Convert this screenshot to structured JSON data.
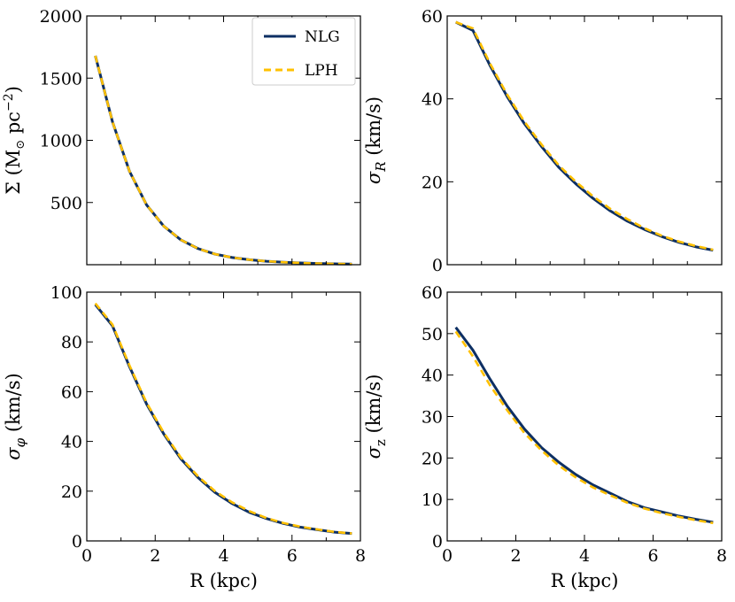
{
  "colors": {
    "nlg": "#0d2f63",
    "lph": "#ffc000"
  },
  "legend": [
    {
      "key": "nlg",
      "label": "NLG",
      "style": "solid"
    },
    {
      "key": "lph",
      "label": "LPH",
      "style": "dashed"
    }
  ],
  "chart_data": [
    {
      "type": "line",
      "id": "sigma",
      "xlabel": "",
      "ylabel": "Σ (M⊙ pc⁻²)",
      "xlim": [
        0,
        8
      ],
      "ylim": [
        0,
        2000
      ],
      "xticks": [],
      "yticks": [
        500,
        1000,
        1500,
        2000
      ],
      "show_xtick_labels": false,
      "x": [
        0.25,
        0.75,
        1.25,
        1.75,
        2.25,
        2.75,
        3.25,
        3.75,
        4.25,
        4.75,
        5.25,
        5.75,
        6.25,
        6.75,
        7.25,
        7.75
      ],
      "series": [
        {
          "name": "NLG",
          "values": [
            1680,
            1150,
            750,
            480,
            310,
            200,
            130,
            85,
            58,
            40,
            28,
            20,
            14,
            10,
            7,
            5
          ]
        },
        {
          "name": "LPH",
          "values": [
            1680,
            1150,
            750,
            480,
            310,
            200,
            130,
            85,
            58,
            40,
            28,
            20,
            14,
            10,
            7,
            5
          ]
        }
      ]
    },
    {
      "type": "line",
      "id": "sigma_r",
      "xlabel": "",
      "ylabel": "σR (km/s)",
      "xlim": [
        0,
        8
      ],
      "ylim": [
        0,
        60
      ],
      "xticks": [],
      "yticks": [
        0,
        20,
        40,
        60
      ],
      "show_xtick_labels": false,
      "x": [
        0.25,
        0.75,
        1.25,
        1.75,
        2.25,
        2.75,
        3.25,
        3.75,
        4.25,
        4.75,
        5.25,
        5.75,
        6.25,
        6.75,
        7.25,
        7.75
      ],
      "series": [
        {
          "name": "NLG",
          "values": [
            58.5,
            56.5,
            48,
            40.5,
            34,
            28.5,
            23.5,
            19.5,
            16,
            13,
            10.5,
            8.5,
            6.8,
            5.4,
            4.3,
            3.5
          ]
        },
        {
          "name": "LPH",
          "values": [
            58.5,
            57,
            48.5,
            41,
            34.5,
            29,
            24,
            20,
            16.5,
            13.5,
            11,
            8.8,
            7,
            5.6,
            4.5,
            3.6
          ]
        }
      ]
    },
    {
      "type": "line",
      "id": "sigma_phi",
      "xlabel": "R (kpc)",
      "ylabel": "σφ (km/s)",
      "xlim": [
        0,
        8
      ],
      "ylim": [
        0,
        100
      ],
      "xticks": [
        0,
        2,
        4,
        6,
        8
      ],
      "yticks": [
        0,
        20,
        40,
        60,
        80,
        100
      ],
      "show_xtick_labels": true,
      "x": [
        0.25,
        0.75,
        1.25,
        1.75,
        2.25,
        2.75,
        3.25,
        3.75,
        4.25,
        4.75,
        5.25,
        5.75,
        6.25,
        6.75,
        7.25,
        7.75
      ],
      "series": [
        {
          "name": "NLG",
          "values": [
            95,
            86.5,
            70,
            55,
            43,
            33,
            25.5,
            19.5,
            15,
            11.5,
            9,
            7,
            5.5,
            4.5,
            3.5,
            3
          ]
        },
        {
          "name": "LPH",
          "values": [
            95.5,
            87,
            70.5,
            55.5,
            43.5,
            33.5,
            26,
            20,
            15.5,
            12,
            9.2,
            7.2,
            5.7,
            4.6,
            3.6,
            3
          ]
        }
      ]
    },
    {
      "type": "line",
      "id": "sigma_z",
      "xlabel": "R (kpc)",
      "ylabel": "σz (km/s)",
      "xlim": [
        0,
        8
      ],
      "ylim": [
        0,
        60
      ],
      "xticks": [
        0,
        2,
        4,
        6,
        8
      ],
      "yticks": [
        0,
        10,
        20,
        30,
        40,
        50,
        60
      ],
      "show_xtick_labels": true,
      "x": [
        0.25,
        0.75,
        1.25,
        1.75,
        2.25,
        2.75,
        3.25,
        3.75,
        4.25,
        4.75,
        5.25,
        5.75,
        6.25,
        6.75,
        7.25,
        7.75
      ],
      "series": [
        {
          "name": "NLG",
          "values": [
            51.5,
            46,
            39,
            32.5,
            27,
            22.5,
            19,
            16,
            13.5,
            11.5,
            9.5,
            8,
            7,
            6,
            5.2,
            4.5
          ]
        },
        {
          "name": "LPH",
          "values": [
            50.5,
            44.5,
            37.5,
            31.5,
            26,
            21.8,
            18.2,
            15.3,
            12.9,
            11,
            9.2,
            7.8,
            6.7,
            5.8,
            5,
            4.3
          ]
        }
      ]
    }
  ]
}
